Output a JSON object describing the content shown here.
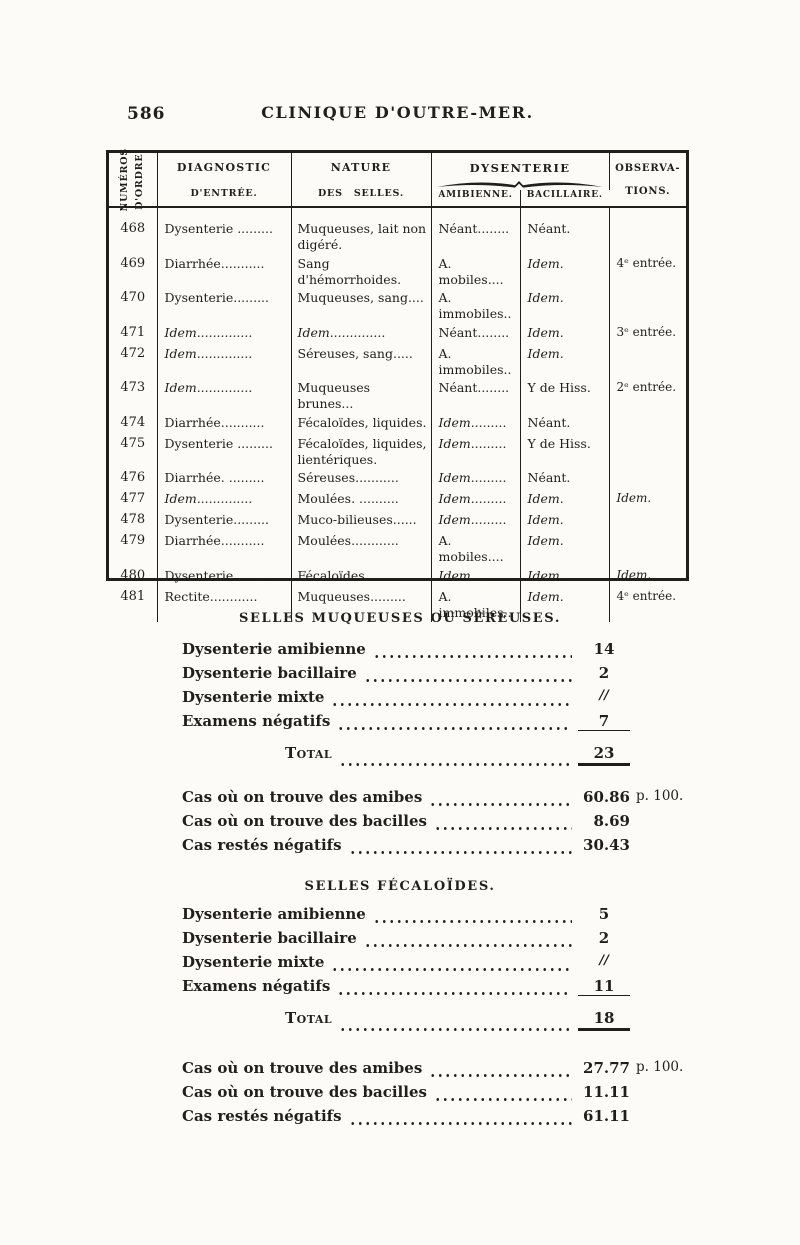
{
  "page_header": {
    "page_number": "586",
    "title": "CLINIQUE D'OUTRE-MER."
  },
  "table": {
    "columns": {
      "num_line1": "NUMÉROS",
      "num_line2": "D'ORDRE.",
      "diagnostic_line1": "DIAGNOSTIC",
      "diagnostic_line2": "D'ENTRÉE.",
      "nature_line1": "NATURE",
      "nature_line2": "DES SELLES.",
      "dysenterie": "DYSENTERIE",
      "amibienne": "AMIBIENNE.",
      "bacillaire": "BACILLAIRE.",
      "observations_line1": "OBSERVA-",
      "observations_line2": "TIONS."
    },
    "rows": [
      [
        {
          "t": "468"
        },
        {
          "t": "Dysenterie ........."
        },
        {
          "t": "Muqueuses, lait non digéré."
        },
        {
          "t": "Néant........"
        },
        {
          "t": "Néant."
        },
        {
          "t": ""
        }
      ],
      [
        {
          "t": "469"
        },
        {
          "t": "Diarrhée..........."
        },
        {
          "t": "Sang d'hémorrhoides."
        },
        {
          "t": "A. mobiles...."
        },
        {
          "t": "Idem.",
          "i": true
        },
        {
          "t": "4ᵉ entrée."
        }
      ],
      [
        {
          "t": "470"
        },
        {
          "t": "Dysenterie........."
        },
        {
          "t": "Muqueuses, sang...."
        },
        {
          "t": "A. immobiles.."
        },
        {
          "t": "Idem.",
          "i": true
        },
        {
          "t": ""
        }
      ],
      [
        {
          "t": "471"
        },
        {
          "t": "Idem..............",
          "i": true
        },
        {
          "t": "Idem..............",
          "i": true
        },
        {
          "t": "Néant........"
        },
        {
          "t": "Idem.",
          "i": true
        },
        {
          "t": "3ᵉ entrée."
        }
      ],
      [
        {
          "t": "472"
        },
        {
          "t": "Idem..............",
          "i": true
        },
        {
          "t": "Séreuses, sang....."
        },
        {
          "t": "A. immobiles.."
        },
        {
          "t": "Idem.",
          "i": true
        },
        {
          "t": ""
        }
      ],
      [
        {
          "t": "473"
        },
        {
          "t": "Idem..............",
          "i": true
        },
        {
          "t": "Muqueuses brunes..."
        },
        {
          "t": "Néant........"
        },
        {
          "t": "Y de Hiss."
        },
        {
          "t": "2ᵉ entrée."
        }
      ],
      [
        {
          "t": "474"
        },
        {
          "t": "Diarrhée..........."
        },
        {
          "t": "Fécaloïdes, liquides."
        },
        {
          "t": "Idem.........",
          "i": true
        },
        {
          "t": "Néant."
        },
        {
          "t": ""
        }
      ],
      [
        {
          "t": "475"
        },
        {
          "t": "Dysenterie ........."
        },
        {
          "t": "Fécaloïdes, liquides, lientériques."
        },
        {
          "t": "Idem.........",
          "i": true
        },
        {
          "t": "Y de Hiss."
        },
        {
          "t": ""
        }
      ],
      [
        {
          "t": "476"
        },
        {
          "t": "Diarrhée. ........."
        },
        {
          "t": "Séreuses..........."
        },
        {
          "t": "Idem.........",
          "i": true
        },
        {
          "t": "Néant."
        },
        {
          "t": ""
        }
      ],
      [
        {
          "t": "477"
        },
        {
          "t": "Idem..............",
          "i": true
        },
        {
          "t": "Moulées. ..........",
          "i": false
        },
        {
          "t": "Idem.........",
          "i": true
        },
        {
          "t": "Idem.",
          "i": true
        },
        {
          "t": "Idem.",
          "i": true
        }
      ],
      [
        {
          "t": "478"
        },
        {
          "t": "Dysenterie........."
        },
        {
          "t": "Muco-bilieuses......"
        },
        {
          "t": "Idem.........",
          "i": true
        },
        {
          "t": "Idem.",
          "i": true
        },
        {
          "t": ""
        }
      ],
      [
        {
          "t": "479"
        },
        {
          "t": "Diarrhée..........."
        },
        {
          "t": "Moulées............"
        },
        {
          "t": "A. mobiles...."
        },
        {
          "t": "Idem.",
          "i": true
        },
        {
          "t": ""
        }
      ],
      [
        {
          "t": "480"
        },
        {
          "t": "Dysenterie........."
        },
        {
          "t": "Fécaloïdes........."
        },
        {
          "t": "Idem.........",
          "i": true
        },
        {
          "t": "Idem.",
          "i": true
        },
        {
          "t": "Idem.",
          "i": true
        }
      ],
      [
        {
          "t": "481"
        },
        {
          "t": "Rectite............"
        },
        {
          "t": "Muqueuses........."
        },
        {
          "t": "A. immobiles.."
        },
        {
          "t": "Idem.",
          "i": true
        },
        {
          "t": "4ᵉ entrée."
        }
      ]
    ]
  },
  "sections": [
    {
      "title": "SELLES MUQUEUSES OU SÉREUSES.",
      "items": [
        {
          "label": "Dysenterie amibienne",
          "value": "14"
        },
        {
          "label": "Dysenterie bacillaire",
          "value": "2"
        },
        {
          "label": "Dysenterie mixte",
          "value": "//"
        },
        {
          "label": "Examens négatifs",
          "value": "7",
          "sum_line": true
        }
      ],
      "total": {
        "label": "Total",
        "value": "23"
      },
      "percents": [
        {
          "label": "Cas où on trouve des amibes",
          "value": "60.86",
          "unit": "p. 100."
        },
        {
          "label": "Cas où on trouve des bacilles",
          "value": "8.69",
          "unit": ""
        },
        {
          "label": "Cas restés négatifs",
          "value": "30.43",
          "unit": ""
        }
      ]
    },
    {
      "title": "SELLES FÉCALOÏDES.",
      "items": [
        {
          "label": "Dysenterie amibienne",
          "value": "5"
        },
        {
          "label": "Dysenterie bacillaire",
          "value": "2"
        },
        {
          "label": "Dysenterie mixte",
          "value": "//"
        },
        {
          "label": "Examens négatifs",
          "value": "11",
          "sum_line": true
        }
      ],
      "total": {
        "label": "Total",
        "value": "18"
      },
      "percents": [
        {
          "label": "Cas où on trouve des amibes",
          "value": "27.77",
          "unit": "p. 100."
        },
        {
          "label": "Cas où on trouve des bacilles",
          "value": "11.11",
          "unit": ""
        },
        {
          "label": "Cas restés négatifs",
          "value": "61.11",
          "unit": ""
        }
      ]
    }
  ],
  "colors": {
    "ink": "#221e19",
    "paper": "#fcfbf8"
  }
}
